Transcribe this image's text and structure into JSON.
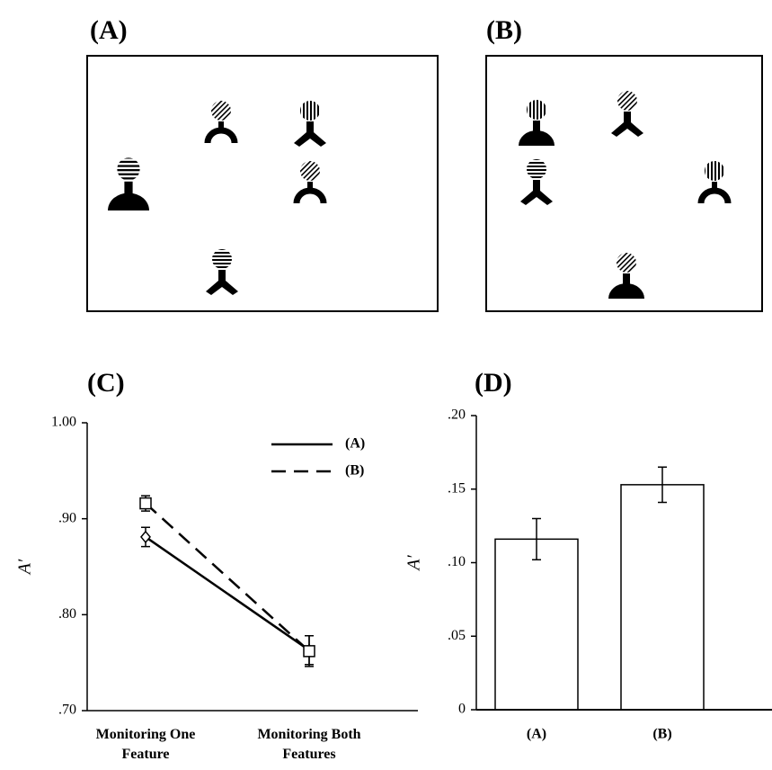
{
  "panels": [
    {
      "label": "(A)"
    },
    {
      "label": "(B)"
    }
  ],
  "chart_data": [
    {
      "type": "line",
      "title": "(C)",
      "y_label": "A′",
      "categories": [
        "Monitoring One Feature",
        "Monitoring Both Features"
      ],
      "series": [
        {
          "name": "(A)",
          "color": "#000000",
          "linestyle": "solid",
          "marker": "diamond",
          "values": [
            0.881,
            0.763
          ],
          "errors": [
            0.01,
            0.015
          ]
        },
        {
          "name": "(B)",
          "color": "#000000",
          "linestyle": "dashed",
          "marker": "square",
          "values": [
            0.916,
            0.762
          ],
          "errors": [
            0.008,
            0.016
          ]
        }
      ],
      "ylim": [
        0.7,
        1.0
      ],
      "yticks": [
        {
          "value": 0.7,
          "label": ".70"
        },
        {
          "value": 0.8,
          "label": ".80"
        },
        {
          "value": 0.9,
          "label": ".90"
        },
        {
          "value": 1.0,
          "label": "1.00"
        }
      ],
      "grid": false,
      "legend": "upper right"
    },
    {
      "type": "bar",
      "title": "(D)",
      "y_label": "A′",
      "categories": [
        "(A)",
        "(B)"
      ],
      "values": [
        0.116,
        0.153
      ],
      "errors": [
        0.014,
        0.012
      ],
      "color": "#ffffff",
      "ylim": [
        0,
        0.2
      ],
      "yticks": [
        0,
        {
          "value": 0.05,
          "label": ".05"
        },
        {
          "value": 0.1,
          "label": ".10"
        },
        {
          "value": 0.15,
          "label": ".15"
        },
        {
          "value": 0.2,
          "label": ".20"
        }
      ],
      "grid": false
    }
  ]
}
